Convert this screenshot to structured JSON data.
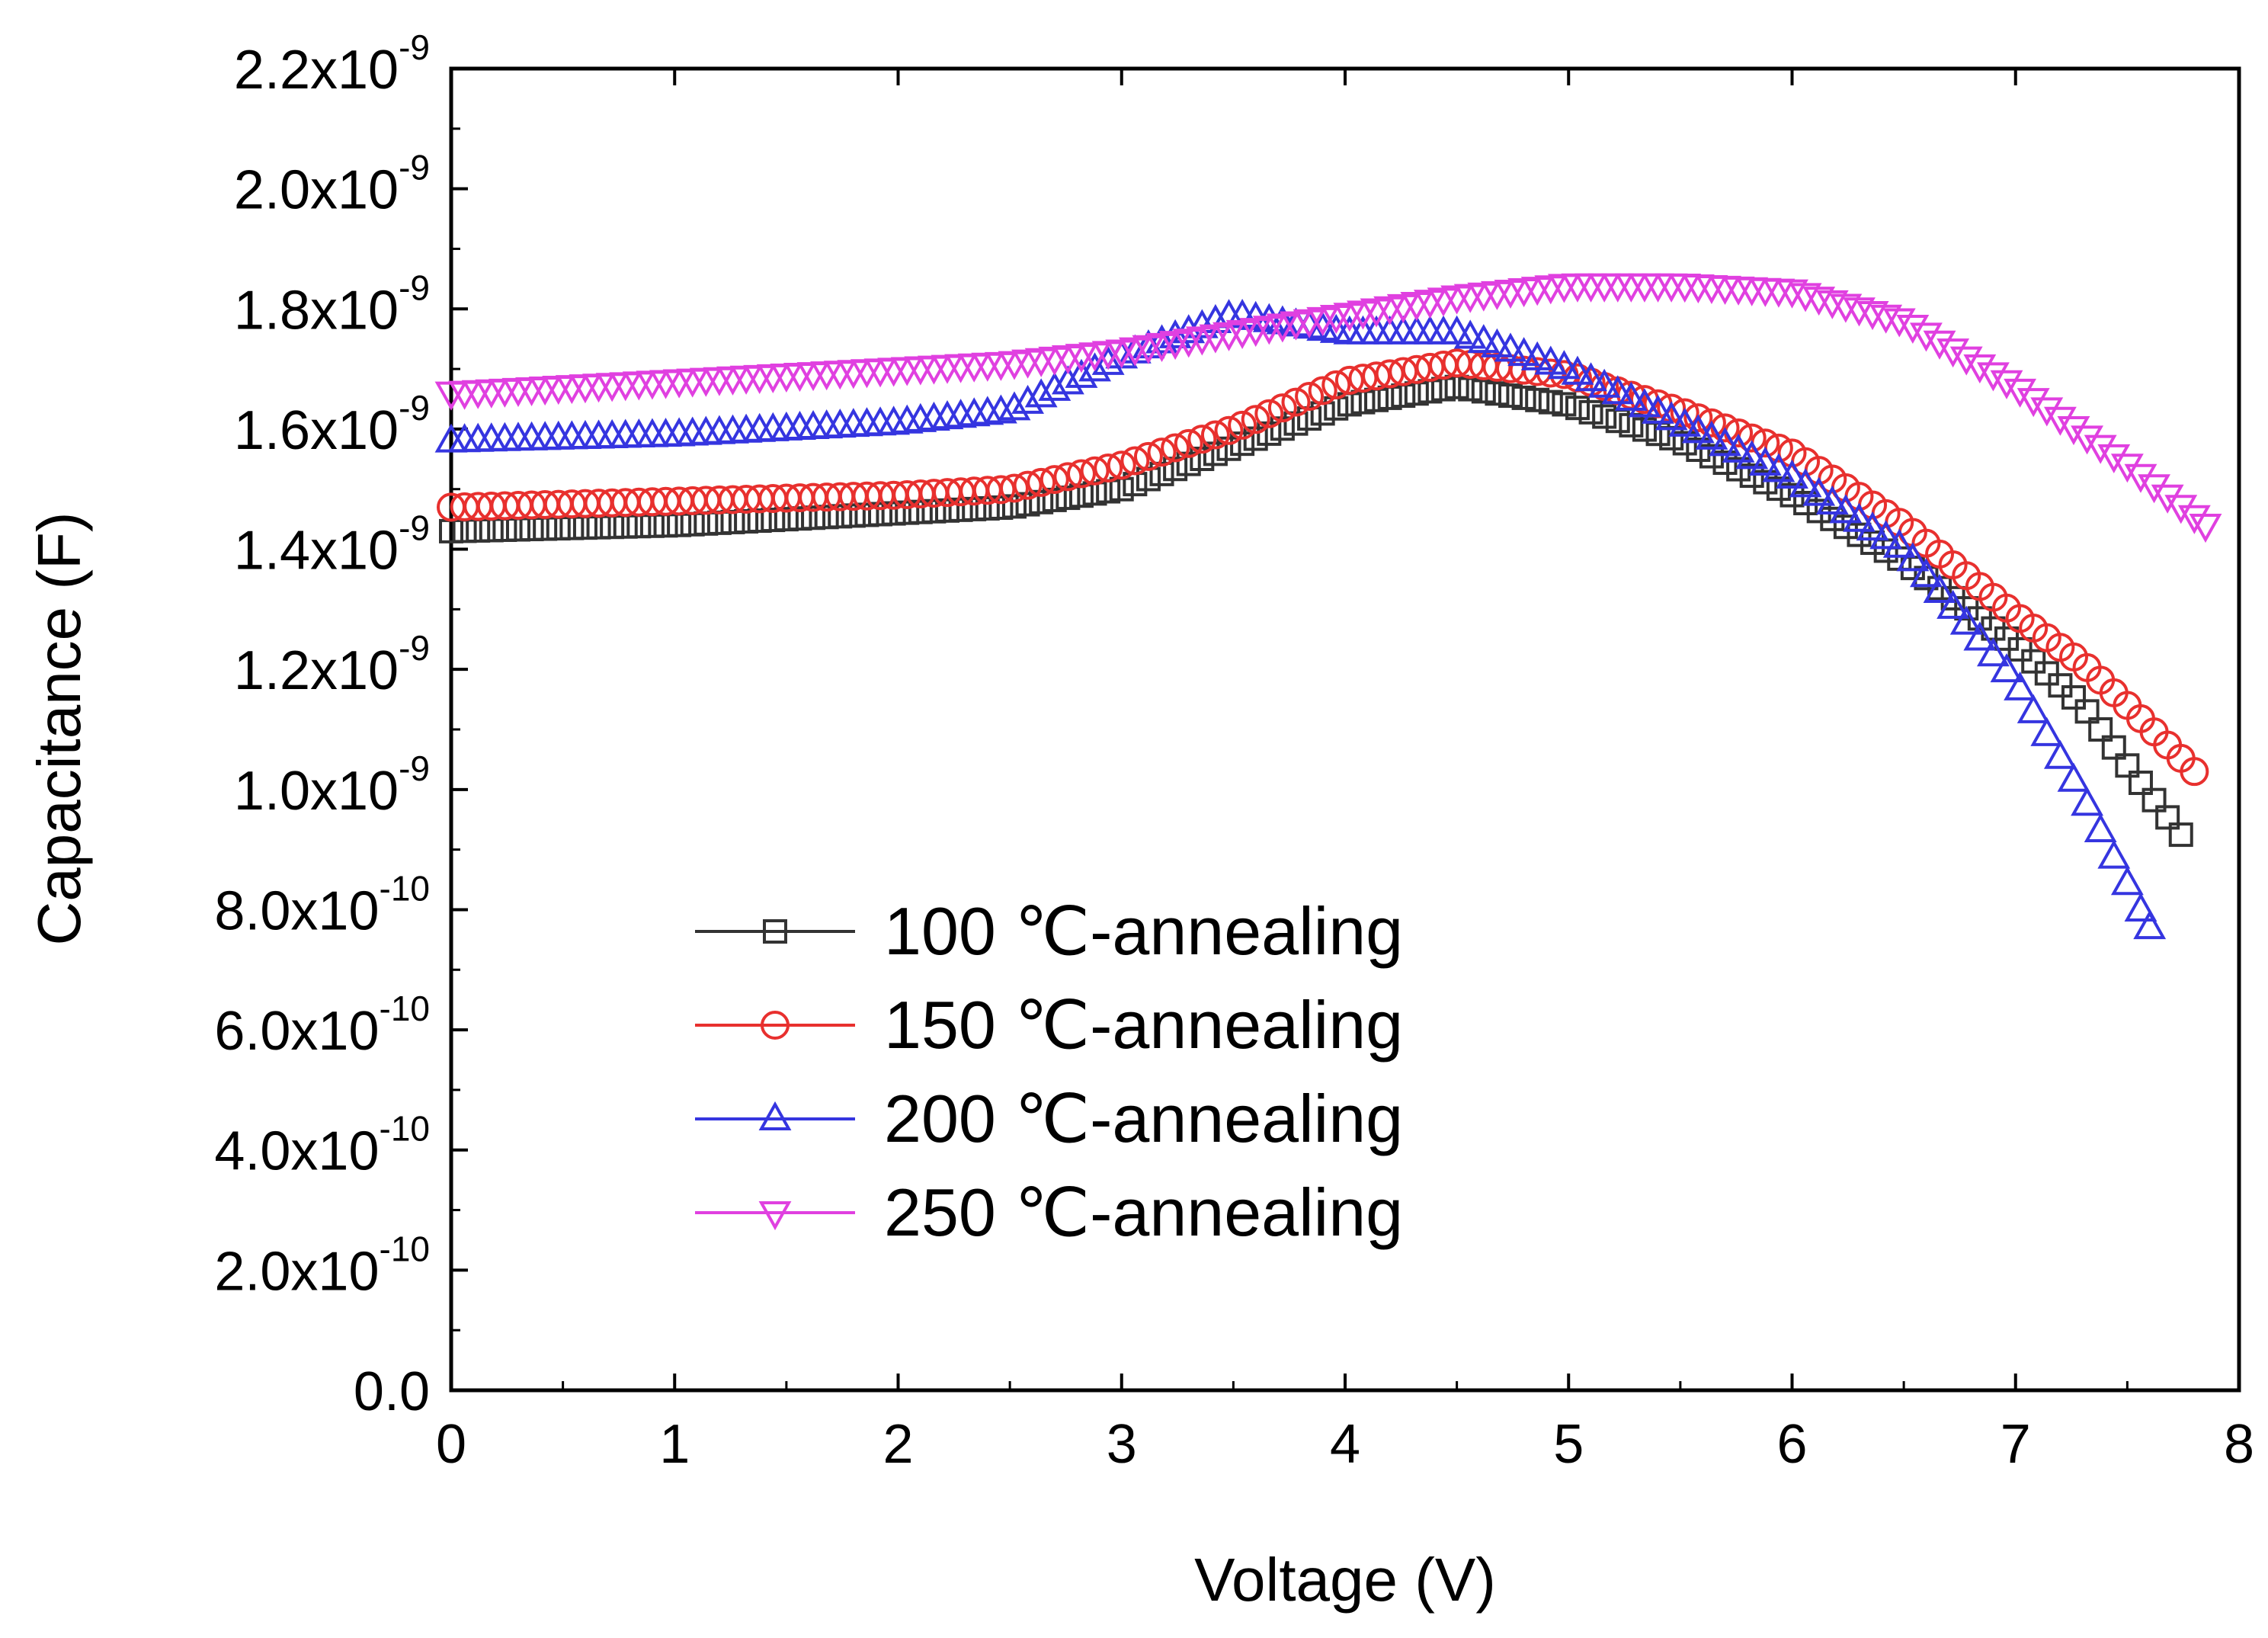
{
  "chart_data": {
    "type": "scatter",
    "title": "",
    "xlabel": "Voltage (V)",
    "ylabel": "Capacitance (F)",
    "xlim": [
      0,
      8
    ],
    "ylim": [
      0,
      2.2e-09
    ],
    "x_ticks": [
      {
        "value": 0,
        "label": "0"
      },
      {
        "value": 1,
        "label": "1"
      },
      {
        "value": 2,
        "label": "2"
      },
      {
        "value": 3,
        "label": "3"
      },
      {
        "value": 4,
        "label": "4"
      },
      {
        "value": 5,
        "label": "5"
      },
      {
        "value": 6,
        "label": "6"
      },
      {
        "value": 7,
        "label": "7"
      },
      {
        "value": 8,
        "label": "8"
      }
    ],
    "y_ticks": [
      {
        "value": 0,
        "mantissa": "0.0",
        "exponent": ""
      },
      {
        "value": 2e-10,
        "mantissa": "2.0x10",
        "exponent": "-10"
      },
      {
        "value": 4e-10,
        "mantissa": "4.0x10",
        "exponent": "-10"
      },
      {
        "value": 6e-10,
        "mantissa": "6.0x10",
        "exponent": "-10"
      },
      {
        "value": 8e-10,
        "mantissa": "8.0x10",
        "exponent": "-10"
      },
      {
        "value": 1e-09,
        "mantissa": "1.0x10",
        "exponent": "-9"
      },
      {
        "value": 1.2e-09,
        "mantissa": "1.2x10",
        "exponent": "-9"
      },
      {
        "value": 1.4e-09,
        "mantissa": "1.4x10",
        "exponent": "-9"
      },
      {
        "value": 1.6e-09,
        "mantissa": "1.6x10",
        "exponent": "-9"
      },
      {
        "value": 1.8e-09,
        "mantissa": "1.8x10",
        "exponent": "-9"
      },
      {
        "value": 2e-09,
        "mantissa": "2.0x10",
        "exponent": "-9"
      },
      {
        "value": 2.2e-09,
        "mantissa": "2.2x10",
        "exponent": "-9"
      }
    ],
    "legend_position": "lower-left",
    "series": [
      {
        "name": "100 ℃-annealing",
        "marker": "square",
        "color": "#333333",
        "x": [
          0,
          1,
          2,
          2.5,
          3,
          3.5,
          4,
          4.5,
          5,
          5.5,
          6,
          6.5,
          7,
          7.3,
          7.5,
          7.75
        ],
        "y": [
          1.43e-09,
          1.44e-09,
          1.46e-09,
          1.47e-09,
          1.5e-09,
          1.57e-09,
          1.64e-09,
          1.67e-09,
          1.64e-09,
          1.58e-09,
          1.49e-09,
          1.38e-09,
          1.24e-09,
          1.14e-09,
          1.04e-09,
          9.2e-10
        ]
      },
      {
        "name": "150 ℃-annealing",
        "marker": "circle",
        "color": "#e8302e",
        "x": [
          0,
          1,
          2,
          2.5,
          3,
          3.5,
          4,
          4.5,
          5,
          5.5,
          6,
          6.5,
          7,
          7.3,
          7.5,
          7.8
        ],
        "y": [
          1.47e-09,
          1.48e-09,
          1.49e-09,
          1.5e-09,
          1.54e-09,
          1.6e-09,
          1.68e-09,
          1.71e-09,
          1.69e-09,
          1.63e-09,
          1.56e-09,
          1.44e-09,
          1.29e-09,
          1.21e-09,
          1.14e-09,
          1.03e-09
        ]
      },
      {
        "name": "200 ℃-annealing",
        "marker": "triangle-up",
        "color": "#3535e0",
        "x": [
          0,
          1,
          2,
          2.5,
          3,
          3.5,
          4,
          4.5,
          5,
          5.5,
          6,
          6.5,
          7,
          7.3,
          7.6
        ],
        "y": [
          1.58e-09,
          1.59e-09,
          1.61e-09,
          1.63e-09,
          1.72e-09,
          1.79e-09,
          1.76e-09,
          1.76e-09,
          1.7e-09,
          1.61e-09,
          1.52e-09,
          1.4e-09,
          1.18e-09,
          9.9e-10,
          7.7e-10
        ]
      },
      {
        "name": "250 ℃-annealing",
        "marker": "triangle-down",
        "color": "#e040e0",
        "x": [
          0,
          1,
          2,
          2.5,
          3,
          3.5,
          4,
          4.5,
          5,
          5.5,
          6,
          6.5,
          7,
          7.5,
          7.85
        ],
        "y": [
          1.66e-09,
          1.68e-09,
          1.7e-09,
          1.71e-09,
          1.73e-09,
          1.76e-09,
          1.79e-09,
          1.82e-09,
          1.84e-09,
          1.84e-09,
          1.83e-09,
          1.78e-09,
          1.67e-09,
          1.54e-09,
          1.44e-09
        ]
      }
    ]
  }
}
